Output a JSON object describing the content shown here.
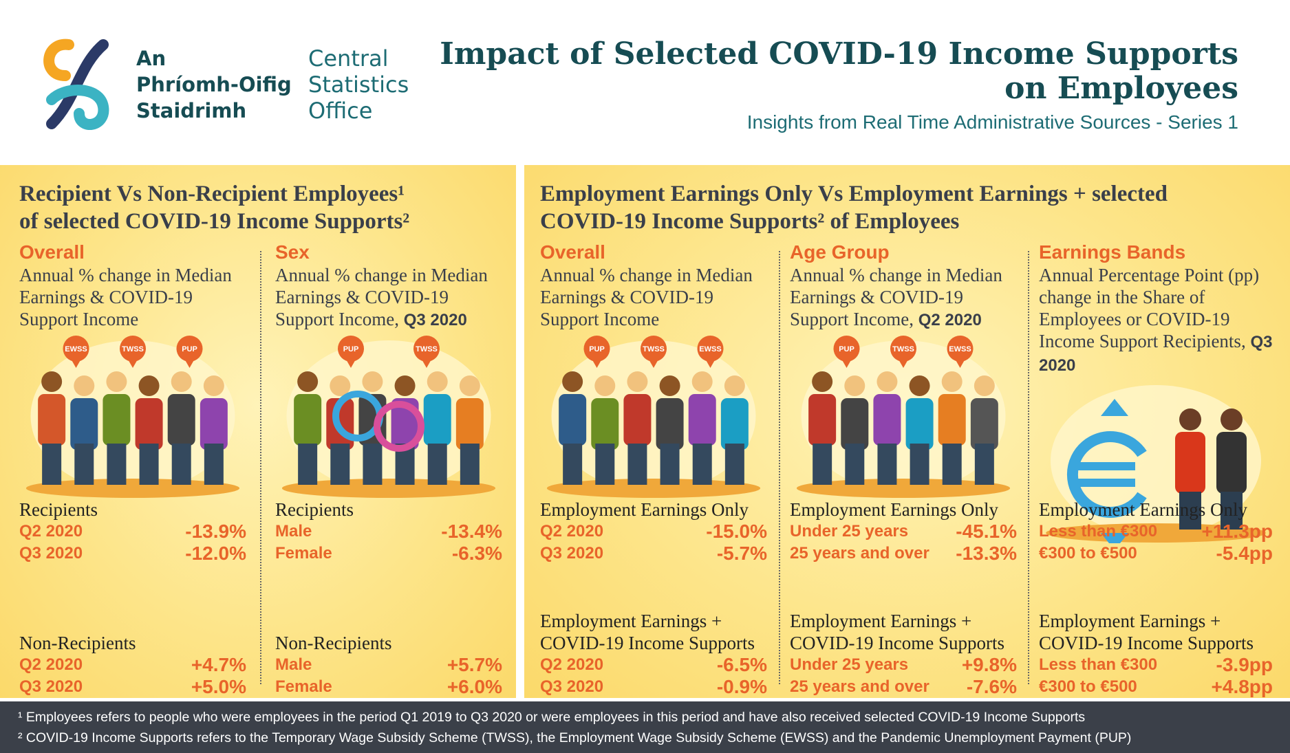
{
  "header": {
    "logo_irish": [
      "An",
      "Phríomh-Oifig",
      "Staidrimh"
    ],
    "logo_english": [
      "Central",
      "Statistics",
      "Office"
    ],
    "title": [
      "Impact of Selected COVID-19 Income Supports",
      "on Employees"
    ],
    "subtitle": "Insights from Real Time Administrative Sources -  Series 1"
  },
  "sections": [
    {
      "heading": [
        "Recipient Vs Non-Recipient Employees¹",
        "of selected  COVID-19 Income Supports²"
      ],
      "panels": [
        {
          "title": "Overall",
          "description": "Annual % change in Median Earnings & COVID-19 Support Income",
          "pins": [
            "EWSS",
            "TWSS",
            "PUP"
          ],
          "groups": [
            {
              "label": "Recipients",
              "rows": [
                {
                  "label": "Q2 2020",
                  "value": "-13.9%"
                },
                {
                  "label": "Q3 2020",
                  "value": "-12.0%"
                }
              ]
            },
            {
              "label": "Non-Recipients",
              "rows": [
                {
                  "label": "Q2 2020",
                  "value": "+4.7%"
                },
                {
                  "label": "Q3 2020",
                  "value": "+5.0%"
                }
              ]
            }
          ]
        },
        {
          "title": "Sex",
          "description": "Annual % change in Median Earnings & COVID-19 Support Income,",
          "description_bold": "Q3 2020",
          "pins": [
            "PUP",
            "TWSS"
          ],
          "groups": [
            {
              "label": "Recipients",
              "rows": [
                {
                  "label": "Male",
                  "value": "-13.4%"
                },
                {
                  "label": "Female",
                  "value": "-6.3%"
                }
              ]
            },
            {
              "label": "Non-Recipients",
              "rows": [
                {
                  "label": "Male",
                  "value": "+5.7%"
                },
                {
                  "label": "Female",
                  "value": "+6.0%"
                }
              ]
            }
          ]
        }
      ]
    },
    {
      "heading": [
        "Employment Earnings Only Vs Employment Earnings + selected",
        "COVID-19 Income Supports² of Employees"
      ],
      "panels": [
        {
          "title": "Overall",
          "description": "Annual % change in Median Earnings & COVID-19 Support Income",
          "pins": [
            "PUP",
            "TWSS",
            "EWSS"
          ],
          "groups": [
            {
              "label": "Employment Earnings Only",
              "rows": [
                {
                  "label": "Q2 2020",
                  "value": "-15.0%"
                },
                {
                  "label": "Q3 2020",
                  "value": "-5.7%"
                }
              ]
            },
            {
              "label": "Employment Earnings + COVID-19 Income Supports",
              "rows": [
                {
                  "label": "Q2 2020",
                  "value": "-6.5%"
                },
                {
                  "label": "Q3 2020",
                  "value": "-0.9%"
                }
              ]
            }
          ]
        },
        {
          "title": "Age Group",
          "description": "Annual % change in Median Earnings & COVID-19 Support Income,",
          "description_bold": "Q2 2020",
          "pins": [
            "PUP",
            "TWSS",
            "EWSS"
          ],
          "groups": [
            {
              "label": "Employment Earnings Only",
              "rows": [
                {
                  "label": "Under 25 years",
                  "value": "-45.1%"
                },
                {
                  "label": "25 years and over",
                  "value": "-13.3%"
                }
              ]
            },
            {
              "label": "Employment Earnings + COVID-19 Income Supports",
              "rows": [
                {
                  "label": "Under 25 years",
                  "value": "+9.8%"
                },
                {
                  "label": "25 years and over",
                  "value": "-7.6%"
                }
              ]
            }
          ]
        },
        {
          "title": "Earnings Bands",
          "description": "Annual Percentage Point (pp) change in the Share of Employees or COVID-19 Income Support Recipients,",
          "description_bold": "Q3 2020",
          "pins": [],
          "groups": [
            {
              "label": "Employment Earnings Only",
              "rows": [
                {
                  "label": "Less than €300",
                  "value": "+11.3pp"
                },
                {
                  "label": "€300 to €500",
                  "value": "-5.4pp"
                }
              ]
            },
            {
              "label": "Employment Earnings + COVID-19 Income Supports",
              "rows": [
                {
                  "label": "Less than €300",
                  "value": "-3.9pp"
                },
                {
                  "label": "€300 to €500",
                  "value": "+4.8pp"
                }
              ]
            }
          ]
        }
      ]
    }
  ],
  "footnotes": [
    "¹ Employees refers to people who were employees in the period Q1 2019 to Q3 2020 or were employees in this period and have also received selected COVID-19 Income Supports",
    "² COVID-19 Income Supports refers to the Temporary Wage Subsidy Scheme (TWSS), the Employment Wage Subsidy Scheme (EWSS) and the Pandemic Unemployment Payment (PUP)"
  ]
}
